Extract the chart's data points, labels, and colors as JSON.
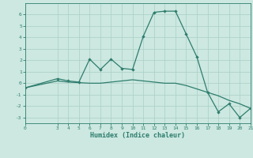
{
  "xlabel": "Humidex (Indice chaleur)",
  "line1_x": [
    0,
    3,
    4,
    5,
    6,
    7,
    8,
    9,
    10,
    11,
    12,
    13,
    14,
    15,
    16,
    17,
    18,
    19,
    20,
    21
  ],
  "line1_y": [
    -0.4,
    0.4,
    0.2,
    0.1,
    2.1,
    1.2,
    2.1,
    1.3,
    1.2,
    4.1,
    6.2,
    6.3,
    6.3,
    4.3,
    2.3,
    -0.8,
    -2.5,
    -1.8,
    -3.0,
    -2.2
  ],
  "line2_x": [
    0,
    3,
    4,
    5,
    6,
    7,
    8,
    9,
    10,
    11,
    12,
    13,
    14,
    15,
    16,
    17,
    18,
    19,
    20,
    21
  ],
  "line2_y": [
    -0.4,
    0.2,
    0.1,
    0.05,
    0.0,
    0.0,
    0.1,
    0.2,
    0.3,
    0.2,
    0.1,
    0.0,
    0.0,
    -0.2,
    -0.5,
    -0.8,
    -1.1,
    -1.5,
    -1.8,
    -2.2
  ],
  "line_color": "#2e7d6e",
  "bg_color": "#cce8e0",
  "grid_color": "#aacfc6",
  "ylim": [
    -3.5,
    7.0
  ],
  "xlim": [
    0,
    21
  ],
  "yticks": [
    -3,
    -2,
    -1,
    0,
    1,
    2,
    3,
    4,
    5,
    6
  ],
  "xticks": [
    0,
    3,
    4,
    5,
    6,
    7,
    8,
    9,
    10,
    11,
    12,
    13,
    14,
    15,
    16,
    17,
    18,
    19,
    20,
    21
  ]
}
